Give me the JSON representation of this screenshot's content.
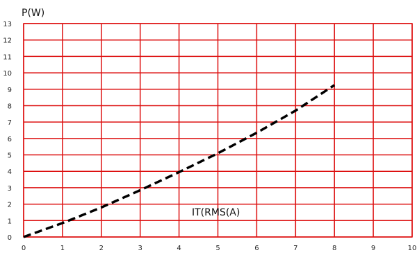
{
  "chart_data": {
    "type": "line",
    "title": "",
    "xlabel": "IT(RMS(A)",
    "ylabel": "P(W)",
    "xlim": [
      0,
      10
    ],
    "ylim": [
      0,
      13
    ],
    "xticks": [
      "0",
      "1",
      "2",
      "3",
      "4",
      "5",
      "6",
      "7",
      "8",
      "9",
      "10"
    ],
    "yticks": [
      "0",
      "1",
      "2",
      "3",
      "4",
      "5",
      "6",
      "7",
      "8",
      "9",
      "10",
      "11",
      "12",
      "13"
    ],
    "grid": true,
    "legend": "none",
    "colors": {
      "grid": "#dd1010",
      "line": "#000000"
    },
    "series": [
      {
        "style": "dashed",
        "x": [
          0,
          1,
          2,
          3,
          4,
          5,
          6,
          7,
          8
        ],
        "y": [
          0,
          0.85,
          1.8,
          2.85,
          3.95,
          5.1,
          6.35,
          7.7,
          9.25
        ]
      }
    ]
  }
}
